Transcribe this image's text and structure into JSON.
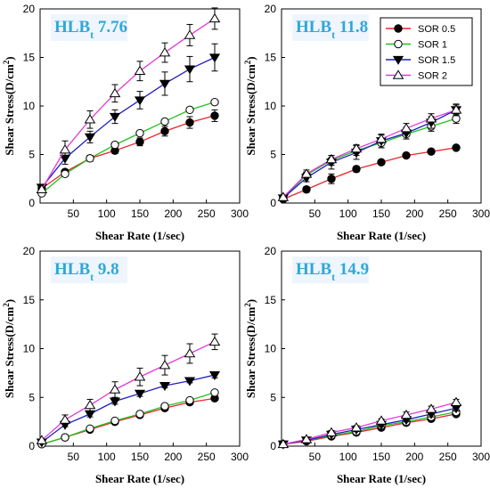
{
  "legend": {
    "entries": [
      {
        "label": "SOR 0.5",
        "color": "#e8262a",
        "marker": "filled-circle"
      },
      {
        "label": "SOR 1",
        "color": "#21c11f",
        "marker": "open-circle"
      },
      {
        "label": "SOR 1.5",
        "color": "#1f1fc0",
        "marker": "filled-triangle-down"
      },
      {
        "label": "SOR 2",
        "color": "#e23bd9",
        "marker": "open-triangle-up"
      }
    ]
  },
  "colors": {
    "title_text": "#2fa7d9",
    "title_highlight": "#eef5fc",
    "marker_fill": "#000000",
    "marker_open_fill": "#ffffff"
  },
  "chart_data": [
    {
      "type": "line",
      "panel": "top-left",
      "title_main": "HLB",
      "title_sub": "t",
      "title_value": "7.76",
      "xlabel": "Shear Rate (1/sec)",
      "ylabel": "Shear Stress(D/cm",
      "ylabel_sup": "2",
      "ylabel_close": ")",
      "xlim": [
        0,
        300
      ],
      "ylim": [
        0,
        20
      ],
      "xticks": [
        50,
        100,
        150,
        200,
        250,
        300
      ],
      "yticks": [
        0,
        5,
        10,
        15,
        20
      ],
      "x": [
        2.5,
        37.5,
        75,
        112.5,
        150,
        187.5,
        225,
        262.5
      ],
      "series": [
        {
          "name": "SOR 0.5",
          "values": [
            1.5,
            3.2,
            4.6,
            5.4,
            6.3,
            7.4,
            8.3,
            9.0
          ],
          "errors": [
            0,
            0.2,
            0.3,
            0.3,
            0.4,
            0.5,
            0.6,
            0.6
          ]
        },
        {
          "name": "SOR 1",
          "values": [
            1.0,
            3.0,
            4.6,
            6.0,
            7.2,
            8.4,
            9.6,
            10.4
          ],
          "errors": [
            0,
            0,
            0,
            0,
            0,
            0,
            0,
            0
          ]
        },
        {
          "name": "SOR 1.5",
          "values": [
            1.6,
            4.6,
            6.8,
            8.9,
            10.6,
            12.3,
            13.8,
            15.0
          ],
          "errors": [
            0,
            0.6,
            0.6,
            0.7,
            0.9,
            1.2,
            1.3,
            1.4
          ]
        },
        {
          "name": "SOR 2",
          "values": [
            1.4,
            5.5,
            8.6,
            11.3,
            13.6,
            15.5,
            17.3,
            19.0
          ],
          "errors": [
            0,
            0.9,
            0.9,
            0.9,
            1.0,
            1.0,
            1.1,
            1.1
          ]
        }
      ]
    },
    {
      "type": "line",
      "panel": "top-right",
      "title_main": "HLB",
      "title_sub": "t",
      "title_value": "11.8",
      "xlabel": "Shear Rate (1/sec)",
      "ylabel": "Shear Stress(D/cm",
      "ylabel_sup": "2",
      "ylabel_close": ")",
      "xlim": [
        0,
        300
      ],
      "ylim": [
        0,
        20
      ],
      "xticks": [
        50,
        100,
        150,
        200,
        250,
        300
      ],
      "yticks": [
        0,
        5,
        10,
        15,
        20
      ],
      "legend": "top-right",
      "x": [
        2.5,
        37.5,
        75,
        112.5,
        150,
        187.5,
        225,
        262.5
      ],
      "series": [
        {
          "name": "SOR 0.5",
          "values": [
            0.4,
            1.4,
            2.5,
            3.5,
            4.2,
            4.9,
            5.3,
            5.7
          ],
          "errors": [
            0,
            0.3,
            0.5,
            0.3,
            0.2,
            0.2,
            0.2,
            0.2
          ]
        },
        {
          "name": "SOR 1",
          "values": [
            0.5,
            2.9,
            4.4,
            5.4,
            6.2,
            7.1,
            7.9,
            8.7
          ],
          "errors": [
            0,
            0.3,
            0.5,
            0.5,
            0.5,
            0.5,
            0.5,
            0.5
          ]
        },
        {
          "name": "SOR 1.5",
          "values": [
            0.5,
            2.6,
            4.2,
            5.2,
            6.4,
            7.2,
            8.3,
            9.6
          ],
          "errors": [
            0,
            0.4,
            0.7,
            0.7,
            0.7,
            0.6,
            0.6,
            0.6
          ]
        },
        {
          "name": "SOR 2",
          "values": [
            0.6,
            3.0,
            4.5,
            5.6,
            6.6,
            7.7,
            8.7,
            9.6
          ],
          "errors": [
            0,
            0.4,
            0.4,
            0.4,
            0.4,
            0.5,
            0.5,
            0.5
          ]
        }
      ]
    },
    {
      "type": "line",
      "panel": "bottom-left",
      "title_main": "HLB",
      "title_sub": "t",
      "title_value": "9.8",
      "xlabel": "Shear Rate (1/sec)",
      "ylabel": "Shear Stress(D/cm",
      "ylabel_sup": "2",
      "ylabel_close": ")",
      "xlim": [
        0,
        300
      ],
      "ylim": [
        0,
        20
      ],
      "xticks": [
        50,
        100,
        150,
        200,
        250,
        300
      ],
      "yticks": [
        0,
        5,
        10,
        15,
        20
      ],
      "x": [
        2.5,
        37.5,
        75,
        112.5,
        150,
        187.5,
        225,
        262.5
      ],
      "series": [
        {
          "name": "SOR 0.5",
          "values": [
            0.2,
            0.9,
            1.7,
            2.5,
            3.2,
            3.9,
            4.5,
            4.9
          ],
          "errors": [
            0,
            0.1,
            0.1,
            0.2,
            0.2,
            0.2,
            0.2,
            0.2
          ]
        },
        {
          "name": "SOR 1",
          "values": [
            0.2,
            0.9,
            1.8,
            2.6,
            3.3,
            4.1,
            4.7,
            5.5
          ],
          "errors": [
            0,
            0.1,
            0.1,
            0.1,
            0.1,
            0.2,
            0.2,
            0.2
          ]
        },
        {
          "name": "SOR 1.5",
          "values": [
            0.4,
            2.2,
            3.3,
            4.6,
            5.4,
            6.2,
            6.7,
            7.3
          ],
          "errors": [
            0,
            0.2,
            0.3,
            0.3,
            0.3,
            0.2,
            0.2,
            0.3
          ]
        },
        {
          "name": "SOR 2",
          "values": [
            0.6,
            2.7,
            4.2,
            5.8,
            7.1,
            8.3,
            9.5,
            10.7
          ],
          "errors": [
            0,
            0.5,
            0.6,
            0.8,
            0.9,
            1.0,
            1.0,
            0.8
          ]
        }
      ]
    },
    {
      "type": "line",
      "panel": "bottom-right",
      "title_main": "HLB",
      "title_sub": "t",
      "title_value": "14.9",
      "xlabel": "Shear Rate (1/sec)",
      "ylabel": "Shear Stress(D/cm",
      "ylabel_sup": "2",
      "ylabel_close": ")",
      "xlim": [
        0,
        300
      ],
      "ylim": [
        0,
        20
      ],
      "xticks": [
        50,
        100,
        150,
        200,
        250,
        300
      ],
      "yticks": [
        0,
        5,
        10,
        15,
        20
      ],
      "x": [
        2.5,
        37.5,
        75,
        112.5,
        150,
        187.5,
        225,
        262.5
      ],
      "series": [
        {
          "name": "SOR 0.5",
          "values": [
            0.2,
            0.5,
            1.0,
            1.4,
            1.9,
            2.4,
            2.8,
            3.3
          ],
          "errors": [
            0,
            0.1,
            0.1,
            0.1,
            0.2,
            0.2,
            0.2,
            0.2
          ]
        },
        {
          "name": "SOR 1",
          "values": [
            0.2,
            0.6,
            1.1,
            1.5,
            2.1,
            2.5,
            3.0,
            3.5
          ],
          "errors": [
            0,
            0.1,
            0.1,
            0.1,
            0.2,
            0.2,
            0.2,
            0.2
          ]
        },
        {
          "name": "SOR 1.5",
          "values": [
            0.2,
            0.6,
            1.2,
            1.7,
            2.2,
            2.7,
            3.3,
            3.9
          ],
          "errors": [
            0,
            0.1,
            0.1,
            0.2,
            0.2,
            0.2,
            0.3,
            0.3
          ]
        },
        {
          "name": "SOR 2",
          "values": [
            0.2,
            0.7,
            1.4,
            1.9,
            2.6,
            3.2,
            3.8,
            4.5
          ],
          "errors": [
            0,
            0.1,
            0.2,
            0.2,
            0.2,
            0.3,
            0.3,
            0.3
          ]
        }
      ]
    }
  ]
}
